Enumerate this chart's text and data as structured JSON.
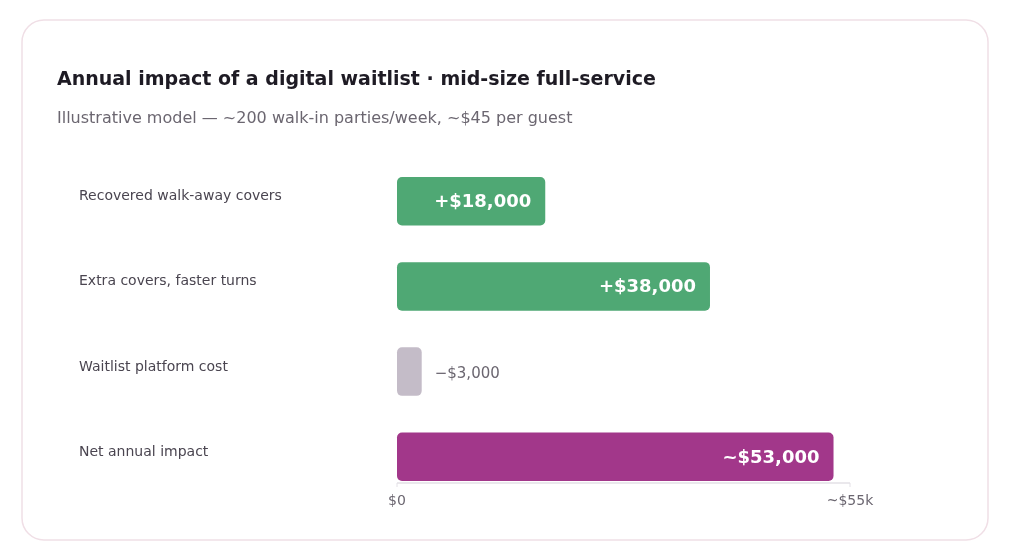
{
  "chart_data": {
    "type": "bar",
    "orientation": "horizontal",
    "title": "Annual impact of a digital waitlist · mid-size full-service",
    "subtitle": "Illustrative model — ~200 walk-in parties/week, ~$45 per guest",
    "categories": [
      "Recovered walk-away covers",
      "Extra covers, faster turns",
      "Waitlist platform cost",
      "Net annual impact"
    ],
    "values": [
      18000,
      38000,
      -3000,
      53000
    ],
    "base": [
      0,
      0,
      3000,
      0
    ],
    "colors": [
      "#4fa874",
      "#4fa874",
      "#c4bcc8",
      "#a2378a"
    ],
    "value_labels": [
      "+$18,000",
      "+$38,000",
      "−$3,000",
      "~$53,000"
    ],
    "xlim": [
      0,
      55000
    ],
    "xticks": [
      {
        "value": 0,
        "label": "$0"
      },
      {
        "value": 55000,
        "label": "~$55k"
      }
    ],
    "grid": false
  }
}
